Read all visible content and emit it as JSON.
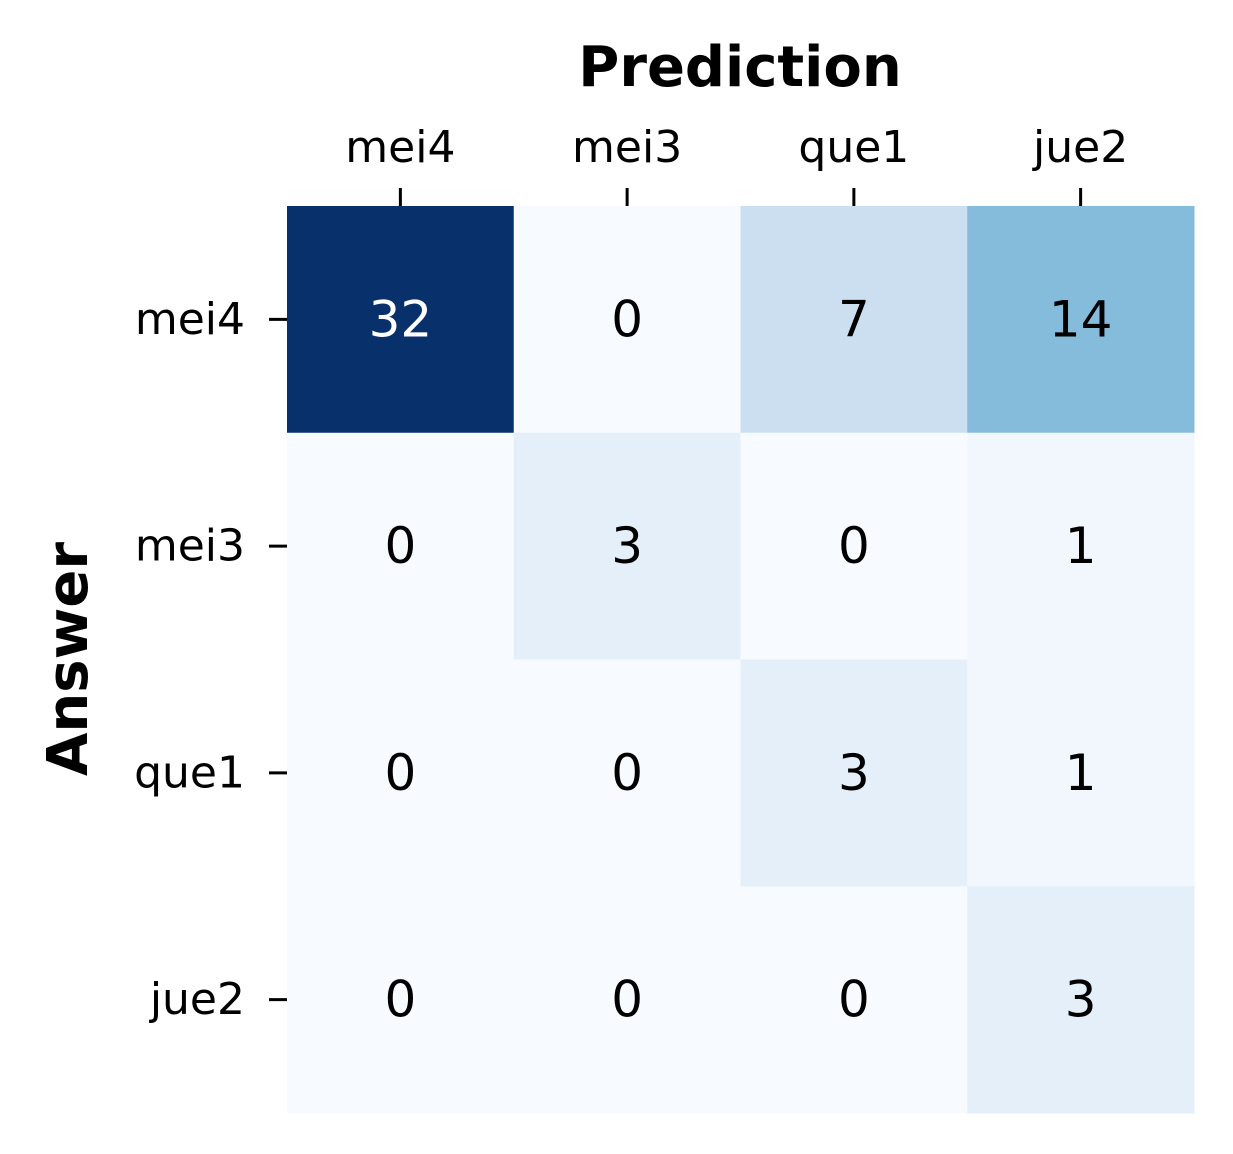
{
  "chart_data": {
    "type": "heatmap",
    "xlabel": "Prediction",
    "ylabel": "Answer",
    "x_categories": [
      "mei4",
      "mei3",
      "que1",
      "jue2"
    ],
    "y_categories": [
      "mei4",
      "mei3",
      "que1",
      "jue2"
    ],
    "values": [
      [
        32,
        0,
        7,
        14
      ],
      [
        0,
        3,
        0,
        1
      ],
      [
        0,
        0,
        3,
        1
      ],
      [
        0,
        0,
        0,
        3
      ]
    ],
    "colormap": "Blues",
    "vmin": 0,
    "vmax": 32,
    "colorbar": false,
    "x_axis_position": "top"
  }
}
